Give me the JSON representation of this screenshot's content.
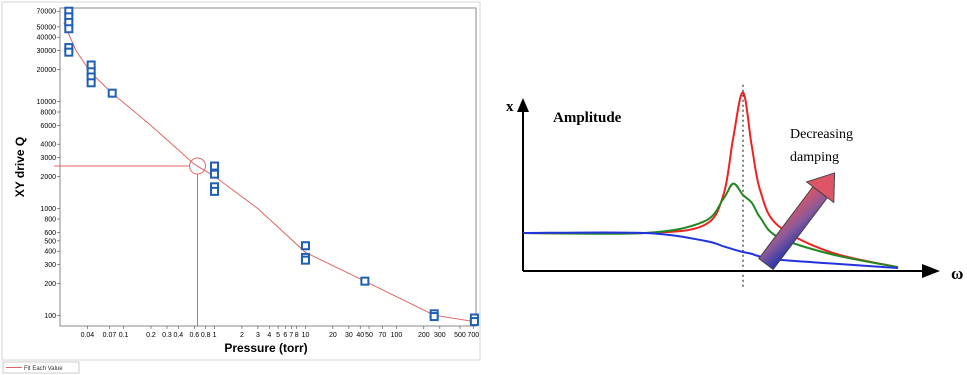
{
  "chart_data": [
    {
      "type": "scatter",
      "title": "",
      "xlabel": "Pressure (torr)",
      "ylabel": "XY drive Q",
      "xscale": "log",
      "yscale": "log",
      "xlim": [
        0.02,
        750
      ],
      "ylim": [
        80,
        75000
      ],
      "grid": false,
      "x_ticks": [
        "0.04",
        "0.07",
        "0.1",
        "0.2",
        "0.3",
        "0.4",
        "0.6",
        "0.8",
        "1",
        "2",
        "3",
        "4",
        "5",
        "6",
        "7",
        "8",
        "10",
        "20",
        "30",
        "40",
        "50",
        "70",
        "100",
        "200",
        "300",
        "500",
        "700"
      ],
      "y_ticks": [
        "100",
        "200",
        "300",
        "400",
        "500",
        "600",
        "800",
        "1000",
        "2000",
        "3000",
        "4000",
        "6000",
        "8000",
        "10000",
        "20000",
        "30000",
        "40000",
        "50000",
        "70000"
      ],
      "series": [
        {
          "name": "",
          "points": [
            {
              "x": 0.025,
              "y": 70000
            },
            {
              "x": 0.025,
              "y": 62000
            },
            {
              "x": 0.025,
              "y": 55000
            },
            {
              "x": 0.025,
              "y": 48000
            },
            {
              "x": 0.025,
              "y": 32000
            },
            {
              "x": 0.025,
              "y": 29000
            },
            {
              "x": 0.044,
              "y": 22000
            },
            {
              "x": 0.044,
              "y": 19000
            },
            {
              "x": 0.044,
              "y": 17000
            },
            {
              "x": 0.044,
              "y": 15000
            },
            {
              "x": 0.075,
              "y": 12000
            },
            {
              "x": 1.0,
              "y": 2500
            },
            {
              "x": 1.0,
              "y": 2100
            },
            {
              "x": 1.0,
              "y": 1600
            },
            {
              "x": 1.0,
              "y": 1450
            },
            {
              "x": 10,
              "y": 450
            },
            {
              "x": 10,
              "y": 350
            },
            {
              "x": 10,
              "y": 330
            },
            {
              "x": 45,
              "y": 210
            },
            {
              "x": 260,
              "y": 104
            },
            {
              "x": 260,
              "y": 98
            },
            {
              "x": 720,
              "y": 95
            },
            {
              "x": 720,
              "y": 88
            }
          ]
        },
        {
          "name": "Fit Each Value",
          "color": "#e06666",
          "points": [
            {
              "x": 0.022,
              "y": 55000
            },
            {
              "x": 0.03,
              "y": 30000
            },
            {
              "x": 0.044,
              "y": 18500
            },
            {
              "x": 0.075,
              "y": 12000
            },
            {
              "x": 0.2,
              "y": 6000
            },
            {
              "x": 0.6,
              "y": 2600
            },
            {
              "x": 1.0,
              "y": 2000
            },
            {
              "x": 3,
              "y": 1000
            },
            {
              "x": 10,
              "y": 390
            },
            {
              "x": 45,
              "y": 210
            },
            {
              "x": 260,
              "y": 101
            },
            {
              "x": 720,
              "y": 88
            }
          ]
        }
      ],
      "annotations": [
        {
          "type": "circle-marker",
          "x": 0.65,
          "y": 2500
        },
        {
          "type": "reference-lines",
          "x": 0.65,
          "y": 2500,
          "color": "#e06666"
        }
      ],
      "legend": {
        "placement": "bottom-left",
        "entries": [
          "Fit Each Value"
        ]
      }
    },
    {
      "type": "line",
      "title": "",
      "xlabel": "ω",
      "ylabel": "x",
      "grid": false,
      "labels": {
        "amplitude": "Amplitude",
        "annotation_line1": "Decreasing",
        "annotation_line2": "damping"
      },
      "x": [
        0.0,
        0.5,
        0.8,
        0.9,
        0.95,
        1.0,
        1.05,
        1.1,
        1.2,
        1.5,
        2.0
      ],
      "series": [
        {
          "name": "",
          "color": "#ee2222",
          "values": [
            1.0,
            1.0,
            1.2,
            2.0,
            3.5,
            4.7,
            3.3,
            2.1,
            1.2,
            0.5,
            0.1
          ]
        },
        {
          "name": "",
          "color": "#228822",
          "values": [
            1.0,
            1.0,
            1.3,
            1.9,
            2.3,
            2.0,
            1.8,
            1.4,
            0.9,
            0.45,
            0.1
          ]
        },
        {
          "name": "",
          "color": "#2233dd",
          "values": [
            1.0,
            1.0,
            0.8,
            0.65,
            0.57,
            0.5,
            0.45,
            0.38,
            0.3,
            0.2,
            0.08
          ]
        }
      ],
      "reference_line": {
        "x": 1.0,
        "style": "dotted"
      },
      "arrow": {
        "meaning": "decreasing damping",
        "gradient": [
          "#2233aa",
          "#dd5566"
        ]
      }
    }
  ]
}
